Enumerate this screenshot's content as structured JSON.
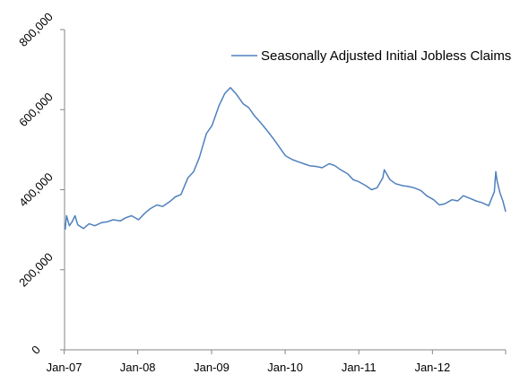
{
  "chart_data": {
    "type": "line",
    "title": "",
    "xlabel": "",
    "ylabel": "",
    "x_range": [
      "2007-01-06",
      "2012-12-29"
    ],
    "ylim": [
      0,
      800000
    ],
    "y_ticks": [
      0,
      200000,
      400000,
      600000,
      800000
    ],
    "y_tick_labels": [
      "0",
      "200,000",
      "400,000",
      "600,000",
      "800,000"
    ],
    "x_ticks": [
      "2007-01-01",
      "2008-01-01",
      "2009-01-01",
      "2010-01-01",
      "2011-01-01",
      "2012-01-01"
    ],
    "x_tick_labels": [
      "Jan-07",
      "Jan-08",
      "Jan-09",
      "Jan-10",
      "Jan-11",
      "Jan-12"
    ],
    "grid": false,
    "legend_position": "top-right",
    "series": [
      {
        "name": "Seasonally Adjusted Initial Jobless Claims",
        "color": "#4F81BD",
        "points": [
          [
            "2007-01-06",
            300000
          ],
          [
            "2007-01-13",
            335000
          ],
          [
            "2007-01-27",
            310000
          ],
          [
            "2007-02-10",
            320000
          ],
          [
            "2007-02-24",
            335000
          ],
          [
            "2007-03-10",
            312000
          ],
          [
            "2007-04-07",
            303000
          ],
          [
            "2007-05-05",
            315000
          ],
          [
            "2007-06-02",
            310000
          ],
          [
            "2007-07-07",
            318000
          ],
          [
            "2007-08-04",
            320000
          ],
          [
            "2007-09-01",
            325000
          ],
          [
            "2007-10-06",
            322000
          ],
          [
            "2007-11-03",
            330000
          ],
          [
            "2007-12-01",
            335000
          ],
          [
            "2008-01-05",
            325000
          ],
          [
            "2008-02-02",
            340000
          ],
          [
            "2008-03-01",
            352000
          ],
          [
            "2008-04-05",
            362000
          ],
          [
            "2008-05-03",
            358000
          ],
          [
            "2008-06-07",
            370000
          ],
          [
            "2008-07-05",
            382000
          ],
          [
            "2008-08-02",
            388000
          ],
          [
            "2008-09-06",
            430000
          ],
          [
            "2008-10-04",
            445000
          ],
          [
            "2008-11-01",
            480000
          ],
          [
            "2008-12-06",
            540000
          ],
          [
            "2009-01-03",
            560000
          ],
          [
            "2009-02-07",
            610000
          ],
          [
            "2009-03-07",
            640000
          ],
          [
            "2009-04-04",
            655000
          ],
          [
            "2009-05-02",
            640000
          ],
          [
            "2009-06-06",
            615000
          ],
          [
            "2009-07-04",
            605000
          ],
          [
            "2009-08-01",
            585000
          ],
          [
            "2009-09-05",
            565000
          ],
          [
            "2009-10-03",
            548000
          ],
          [
            "2009-11-07",
            525000
          ],
          [
            "2009-12-05",
            505000
          ],
          [
            "2010-01-02",
            485000
          ],
          [
            "2010-02-06",
            475000
          ],
          [
            "2010-03-06",
            470000
          ],
          [
            "2010-04-03",
            465000
          ],
          [
            "2010-05-01",
            460000
          ],
          [
            "2010-06-05",
            458000
          ],
          [
            "2010-07-03",
            455000
          ],
          [
            "2010-08-07",
            465000
          ],
          [
            "2010-09-04",
            460000
          ],
          [
            "2010-10-02",
            450000
          ],
          [
            "2010-11-06",
            440000
          ],
          [
            "2010-12-04",
            425000
          ],
          [
            "2011-01-01",
            420000
          ],
          [
            "2011-02-05",
            410000
          ],
          [
            "2011-03-05",
            400000
          ],
          [
            "2011-04-02",
            405000
          ],
          [
            "2011-04-30",
            430000
          ],
          [
            "2011-05-07",
            450000
          ],
          [
            "2011-06-04",
            425000
          ],
          [
            "2011-07-02",
            415000
          ],
          [
            "2011-08-06",
            410000
          ],
          [
            "2011-09-03",
            408000
          ],
          [
            "2011-10-01",
            405000
          ],
          [
            "2011-11-05",
            398000
          ],
          [
            "2011-12-03",
            385000
          ],
          [
            "2012-01-07",
            375000
          ],
          [
            "2012-02-04",
            362000
          ],
          [
            "2012-03-03",
            365000
          ],
          [
            "2012-04-07",
            375000
          ],
          [
            "2012-05-05",
            372000
          ],
          [
            "2012-06-02",
            385000
          ],
          [
            "2012-07-07",
            378000
          ],
          [
            "2012-08-04",
            372000
          ],
          [
            "2012-09-01",
            368000
          ],
          [
            "2012-10-06",
            360000
          ],
          [
            "2012-11-03",
            395000
          ],
          [
            "2012-11-10",
            445000
          ],
          [
            "2012-11-17",
            420000
          ],
          [
            "2012-12-01",
            392000
          ],
          [
            "2012-12-15",
            372000
          ],
          [
            "2012-12-29",
            345000
          ]
        ]
      }
    ]
  }
}
